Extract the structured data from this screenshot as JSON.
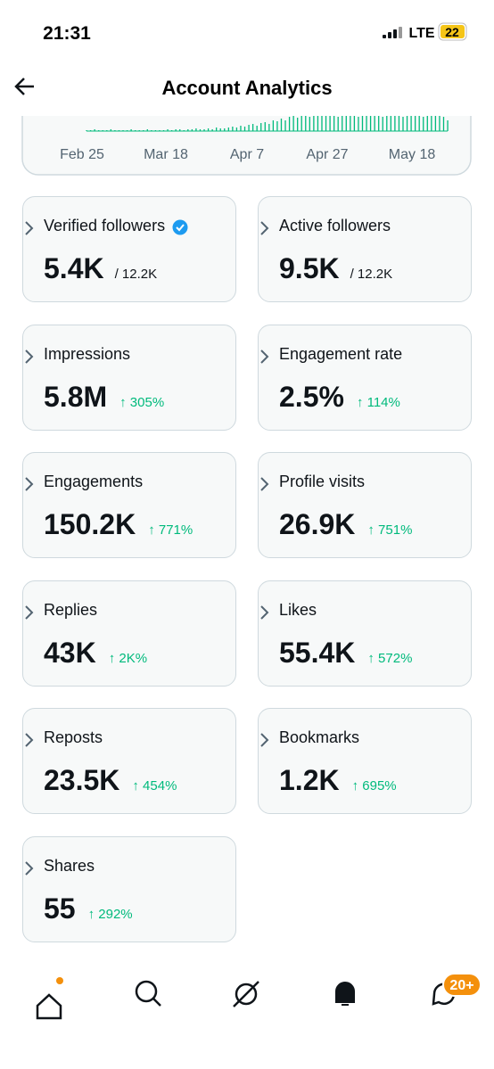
{
  "status": {
    "time": "21:31",
    "network": "LTE",
    "battery": "22"
  },
  "header": {
    "title": "Account Analytics"
  },
  "chart": {
    "x_labels": [
      "Feb 25",
      "Mar 18",
      "Apr 7",
      "Apr 27",
      "May 18"
    ],
    "values": [
      1,
      1,
      2,
      1,
      1,
      1,
      2,
      1,
      1,
      1,
      1,
      2,
      1,
      1,
      1,
      2,
      1,
      1,
      1,
      1,
      2,
      1,
      2,
      2,
      1,
      2,
      2,
      3,
      2,
      2,
      3,
      2,
      4,
      3,
      3,
      4,
      5,
      4,
      6,
      5,
      7,
      8,
      6,
      9,
      10,
      8,
      12,
      11,
      14,
      12,
      16,
      18,
      15,
      17,
      18,
      16,
      18,
      18,
      17,
      18,
      17,
      18,
      16,
      18,
      18,
      17,
      18,
      16,
      18,
      18,
      17,
      18,
      18,
      16,
      18,
      17,
      18,
      18,
      16,
      18,
      17,
      18,
      18,
      16,
      18,
      17,
      18,
      18,
      16,
      12
    ]
  },
  "cards": [
    {
      "label": "Verified followers",
      "value": "5.4K",
      "total": "/ 12.2K"
    },
    {
      "label": "Active followers",
      "value": "9.5K",
      "total": "/ 12.2K"
    },
    {
      "label": "Impressions",
      "value": "5.8M",
      "change": "↑ 305%"
    },
    {
      "label": "Engagement rate",
      "value": "2.5%",
      "change": "↑ 114%"
    },
    {
      "label": "Engagements",
      "value": "150.2K",
      "change": "↑ 771%"
    },
    {
      "label": "Profile visits",
      "value": "26.9K",
      "change": "↑ 751%"
    },
    {
      "label": "Replies",
      "value": "43K",
      "change": "↑ 2K%"
    },
    {
      "label": "Likes",
      "value": "55.4K",
      "change": "↑ 572%"
    },
    {
      "label": "Reposts",
      "value": "23.5K",
      "change": "↑ 454%"
    },
    {
      "label": "Bookmarks",
      "value": "1.2K",
      "change": "↑ 695%"
    },
    {
      "label": "Shares",
      "value": "55",
      "change": "↑ 292%"
    }
  ],
  "nav": {
    "badge": "20+"
  }
}
